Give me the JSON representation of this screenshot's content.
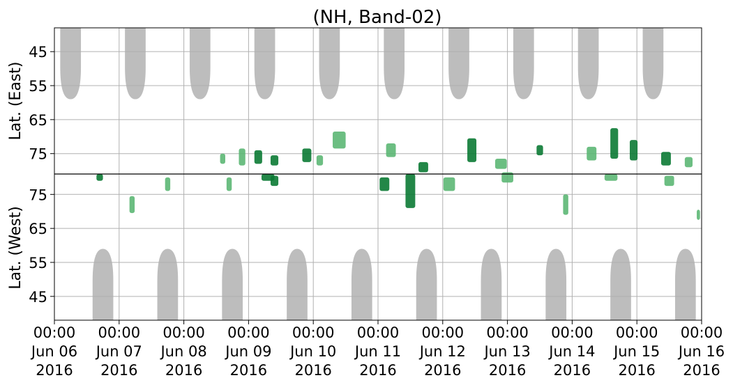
{
  "chart_data": {
    "type": "heatmap",
    "title": "(NH, Band-02)",
    "ylabel_top": "Lat. (East)",
    "ylabel_bottom": "Lat. (West)",
    "xlim": [
      "2016-06-06 00:00",
      "2016-06-16 00:00"
    ],
    "x_ticks": [
      {
        "time": "00:00",
        "date": "Jun 06",
        "year": "2016"
      },
      {
        "time": "00:00",
        "date": "Jun 07",
        "year": "2016"
      },
      {
        "time": "00:00",
        "date": "Jun 08",
        "year": "2016"
      },
      {
        "time": "00:00",
        "date": "Jun 09",
        "year": "2016"
      },
      {
        "time": "00:00",
        "date": "Jun 10",
        "year": "2016"
      },
      {
        "time": "00:00",
        "date": "Jun 11",
        "year": "2016"
      },
      {
        "time": "00:00",
        "date": "Jun 12",
        "year": "2016"
      },
      {
        "time": "00:00",
        "date": "Jun 13",
        "year": "2016"
      },
      {
        "time": "00:00",
        "date": "Jun 14",
        "year": "2016"
      },
      {
        "time": "00:00",
        "date": "Jun 15",
        "year": "2016"
      },
      {
        "time": "00:00",
        "date": "Jun 16",
        "year": "2016"
      }
    ],
    "y_ticks_top": [
      "45",
      "55",
      "65",
      "75"
    ],
    "y_ticks_bottom": [
      "75",
      "65",
      "55",
      "45"
    ],
    "y_tick_values_top": [
      45,
      55,
      65,
      75
    ],
    "y_tick_values_bottom": [
      75,
      65,
      55,
      45
    ],
    "ylim_each_panel": [
      38,
      81
    ],
    "grid": true,
    "colors": {
      "echo_weak": "#5cb774",
      "echo_strong": "#0b7a34",
      "no_data": "#bdbdbd",
      "grid": "#b0b0b0",
      "divider": "#000000"
    },
    "no_data_east": [
      {
        "day": 0.25,
        "half_width_days": 0.16,
        "min_lat": 59
      },
      {
        "day": 1.25,
        "half_width_days": 0.16,
        "min_lat": 59
      },
      {
        "day": 2.25,
        "half_width_days": 0.16,
        "min_lat": 59
      },
      {
        "day": 3.25,
        "half_width_days": 0.16,
        "min_lat": 59
      },
      {
        "day": 4.25,
        "half_width_days": 0.16,
        "min_lat": 59
      },
      {
        "day": 5.25,
        "half_width_days": 0.16,
        "min_lat": 59
      },
      {
        "day": 6.25,
        "half_width_days": 0.16,
        "min_lat": 59
      },
      {
        "day": 7.25,
        "half_width_days": 0.16,
        "min_lat": 59
      },
      {
        "day": 8.25,
        "half_width_days": 0.16,
        "min_lat": 59
      },
      {
        "day": 9.25,
        "half_width_days": 0.16,
        "min_lat": 59
      }
    ],
    "no_data_west": [
      {
        "day": 0.75,
        "half_width_days": 0.16,
        "min_lat": 59
      },
      {
        "day": 1.75,
        "half_width_days": 0.16,
        "min_lat": 59
      },
      {
        "day": 2.75,
        "half_width_days": 0.16,
        "min_lat": 59
      },
      {
        "day": 3.75,
        "half_width_days": 0.16,
        "min_lat": 59
      },
      {
        "day": 4.75,
        "half_width_days": 0.16,
        "min_lat": 59
      },
      {
        "day": 5.75,
        "half_width_days": 0.16,
        "min_lat": 59
      },
      {
        "day": 6.75,
        "half_width_days": 0.16,
        "min_lat": 59
      },
      {
        "day": 7.75,
        "half_width_days": 0.16,
        "min_lat": 59
      },
      {
        "day": 8.75,
        "half_width_days": 0.16,
        "min_lat": 59
      },
      {
        "day": 9.75,
        "half_width_days": 0.16,
        "min_lat": 59
      }
    ],
    "echo_patches_east": [
      {
        "day": 2.6,
        "lat": 76.5,
        "dday": 0.08,
        "dlat": 3,
        "strong": false
      },
      {
        "day": 2.9,
        "lat": 76,
        "dday": 0.1,
        "dlat": 5,
        "strong": false
      },
      {
        "day": 3.15,
        "lat": 76,
        "dday": 0.12,
        "dlat": 4,
        "strong": true
      },
      {
        "day": 3.4,
        "lat": 77,
        "dday": 0.12,
        "dlat": 3,
        "strong": true
      },
      {
        "day": 3.9,
        "lat": 75.5,
        "dday": 0.14,
        "dlat": 4,
        "strong": true
      },
      {
        "day": 4.1,
        "lat": 77,
        "dday": 0.1,
        "dlat": 3,
        "strong": false
      },
      {
        "day": 4.4,
        "lat": 71,
        "dday": 0.2,
        "dlat": 5,
        "strong": false
      },
      {
        "day": 5.2,
        "lat": 74,
        "dday": 0.15,
        "dlat": 4,
        "strong": false
      },
      {
        "day": 5.7,
        "lat": 79,
        "dday": 0.15,
        "dlat": 3,
        "strong": true
      },
      {
        "day": 6.45,
        "lat": 74,
        "dday": 0.14,
        "dlat": 7,
        "strong": true
      },
      {
        "day": 6.9,
        "lat": 78,
        "dday": 0.18,
        "dlat": 3,
        "strong": false
      },
      {
        "day": 7.5,
        "lat": 74,
        "dday": 0.1,
        "dlat": 3,
        "strong": true
      },
      {
        "day": 8.3,
        "lat": 75,
        "dday": 0.15,
        "dlat": 4,
        "strong": false
      },
      {
        "day": 8.65,
        "lat": 72,
        "dday": 0.12,
        "dlat": 9,
        "strong": true
      },
      {
        "day": 8.95,
        "lat": 74,
        "dday": 0.12,
        "dlat": 6,
        "strong": true
      },
      {
        "day": 9.45,
        "lat": 76.5,
        "dday": 0.15,
        "dlat": 4,
        "strong": true
      },
      {
        "day": 9.8,
        "lat": 77.5,
        "dday": 0.12,
        "dlat": 3,
        "strong": false
      }
    ],
    "echo_patches_west": [
      {
        "day": 0.7,
        "lat": 80,
        "dday": 0.1,
        "dlat": 2,
        "strong": true
      },
      {
        "day": 1.2,
        "lat": 72,
        "dday": 0.08,
        "dlat": 5,
        "strong": false
      },
      {
        "day": 1.75,
        "lat": 78,
        "dday": 0.08,
        "dlat": 4,
        "strong": false
      },
      {
        "day": 2.7,
        "lat": 78,
        "dday": 0.08,
        "dlat": 4,
        "strong": false
      },
      {
        "day": 3.3,
        "lat": 80,
        "dday": 0.2,
        "dlat": 2,
        "strong": true
      },
      {
        "day": 3.4,
        "lat": 79,
        "dday": 0.12,
        "dlat": 3,
        "strong": true
      },
      {
        "day": 5.1,
        "lat": 78,
        "dday": 0.15,
        "dlat": 4,
        "strong": true
      },
      {
        "day": 5.5,
        "lat": 76,
        "dday": 0.15,
        "dlat": 10,
        "strong": true
      },
      {
        "day": 6.1,
        "lat": 78,
        "dday": 0.18,
        "dlat": 4,
        "strong": false
      },
      {
        "day": 7.0,
        "lat": 80,
        "dday": 0.18,
        "dlat": 3,
        "strong": false
      },
      {
        "day": 7.9,
        "lat": 72,
        "dday": 0.08,
        "dlat": 6,
        "strong": false
      },
      {
        "day": 8.6,
        "lat": 80,
        "dday": 0.2,
        "dlat": 2,
        "strong": false
      },
      {
        "day": 9.5,
        "lat": 79,
        "dday": 0.15,
        "dlat": 3,
        "strong": false
      },
      {
        "day": 9.95,
        "lat": 69,
        "dday": 0.05,
        "dlat": 3,
        "strong": false
      }
    ]
  }
}
